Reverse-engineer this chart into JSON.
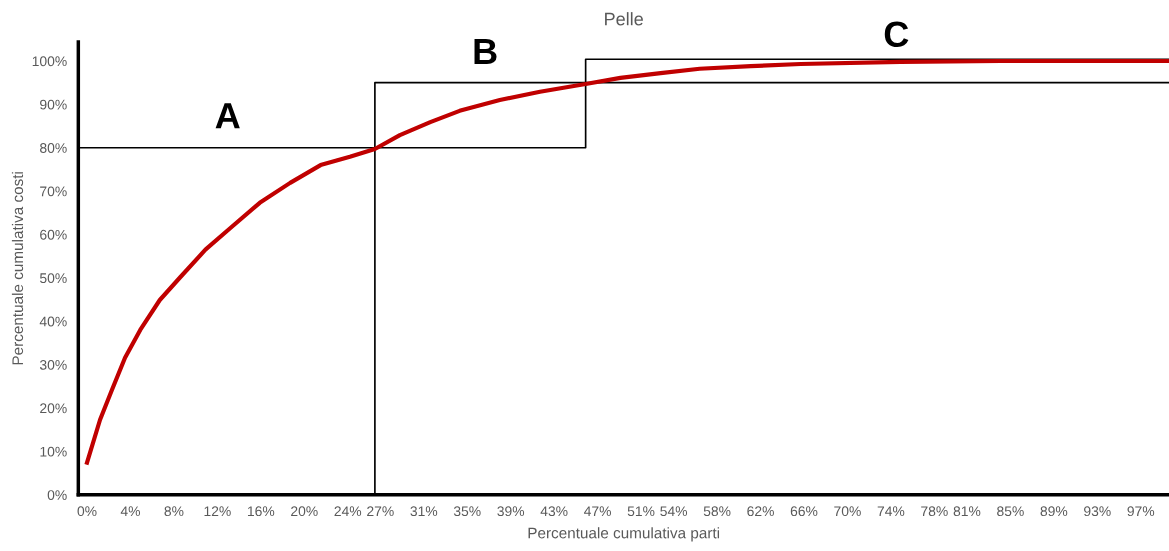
{
  "chart_data": {
    "type": "line",
    "title": "Pelle",
    "xlabel": "Percentuale cumulativa parti",
    "ylabel": "Percentuale cumulativa costi",
    "xlim": [
      -0.8,
      99.6
    ],
    "ylim": [
      0,
      104.4
    ],
    "xticks": [
      {
        "value": 0,
        "label": "0%"
      },
      {
        "value": 4,
        "label": "4%"
      },
      {
        "value": 8,
        "label": "8%"
      },
      {
        "value": 12,
        "label": "12%"
      },
      {
        "value": 16,
        "label": "16%"
      },
      {
        "value": 20,
        "label": "20%"
      },
      {
        "value": 24,
        "label": "24%"
      },
      {
        "value": 27,
        "label": "27%"
      },
      {
        "value": 31,
        "label": "31%"
      },
      {
        "value": 35,
        "label": "35%"
      },
      {
        "value": 39,
        "label": "39%"
      },
      {
        "value": 43,
        "label": "43%"
      },
      {
        "value": 47,
        "label": "47%"
      },
      {
        "value": 51,
        "label": "51%"
      },
      {
        "value": 54,
        "label": "54%"
      },
      {
        "value": 58,
        "label": "58%"
      },
      {
        "value": 62,
        "label": "62%"
      },
      {
        "value": 66,
        "label": "66%"
      },
      {
        "value": 70,
        "label": "70%"
      },
      {
        "value": 74,
        "label": "74%"
      },
      {
        "value": 78,
        "label": "78%"
      },
      {
        "value": 81,
        "label": "81%"
      },
      {
        "value": 85,
        "label": "85%"
      },
      {
        "value": 89,
        "label": "89%"
      },
      {
        "value": 93,
        "label": "93%"
      },
      {
        "value": 97,
        "label": "97%"
      }
    ],
    "yticks": [
      {
        "value": 0,
        "label": "0%"
      },
      {
        "value": 10,
        "label": "10%"
      },
      {
        "value": 20,
        "label": "20%"
      },
      {
        "value": 30,
        "label": "30%"
      },
      {
        "value": 40,
        "label": "40%"
      },
      {
        "value": 50,
        "label": "50%"
      },
      {
        "value": 60,
        "label": "60%"
      },
      {
        "value": 70,
        "label": "70%"
      },
      {
        "value": 80,
        "label": "80%"
      },
      {
        "value": 90,
        "label": "90%"
      },
      {
        "value": 100,
        "label": "100%"
      }
    ],
    "series": [
      {
        "color": "#c00000",
        "x": [
          0,
          1.2,
          2.3,
          3.5,
          4.9,
          6.7,
          8.6,
          10.9,
          13.2,
          15.9,
          18.7,
          21.5,
          24.2,
          26.5,
          28.8,
          31.6,
          34.3,
          38,
          41.7,
          45.9,
          49.1,
          52.8,
          56.4,
          61.1,
          65.7,
          74.9,
          84.1,
          99.6
        ],
        "values": [
          7.4,
          17.3,
          24.2,
          31.6,
          38,
          44.9,
          50.2,
          56.5,
          61.5,
          67.3,
          71.9,
          76,
          77.9,
          79.7,
          82.9,
          85.9,
          88.5,
          91,
          92.9,
          94.7,
          96.1,
          97.2,
          98.2,
          98.8,
          99.3,
          99.8,
          100,
          100
        ]
      },
      {
        "color": "#000000",
        "x": [
          -0.8,
          45.9,
          45.9,
          99.6
        ],
        "values": [
          80,
          80,
          100.4,
          100.4
        ]
      },
      {
        "color": "#000000",
        "x": [
          26.5,
          26.5,
          99.6
        ],
        "values": [
          0,
          95,
          95
        ]
      }
    ],
    "annotations": [
      "A",
      "B",
      "C"
    ],
    "grid": false,
    "legend": false,
    "marker": "none",
    "line_style": "solid"
  }
}
